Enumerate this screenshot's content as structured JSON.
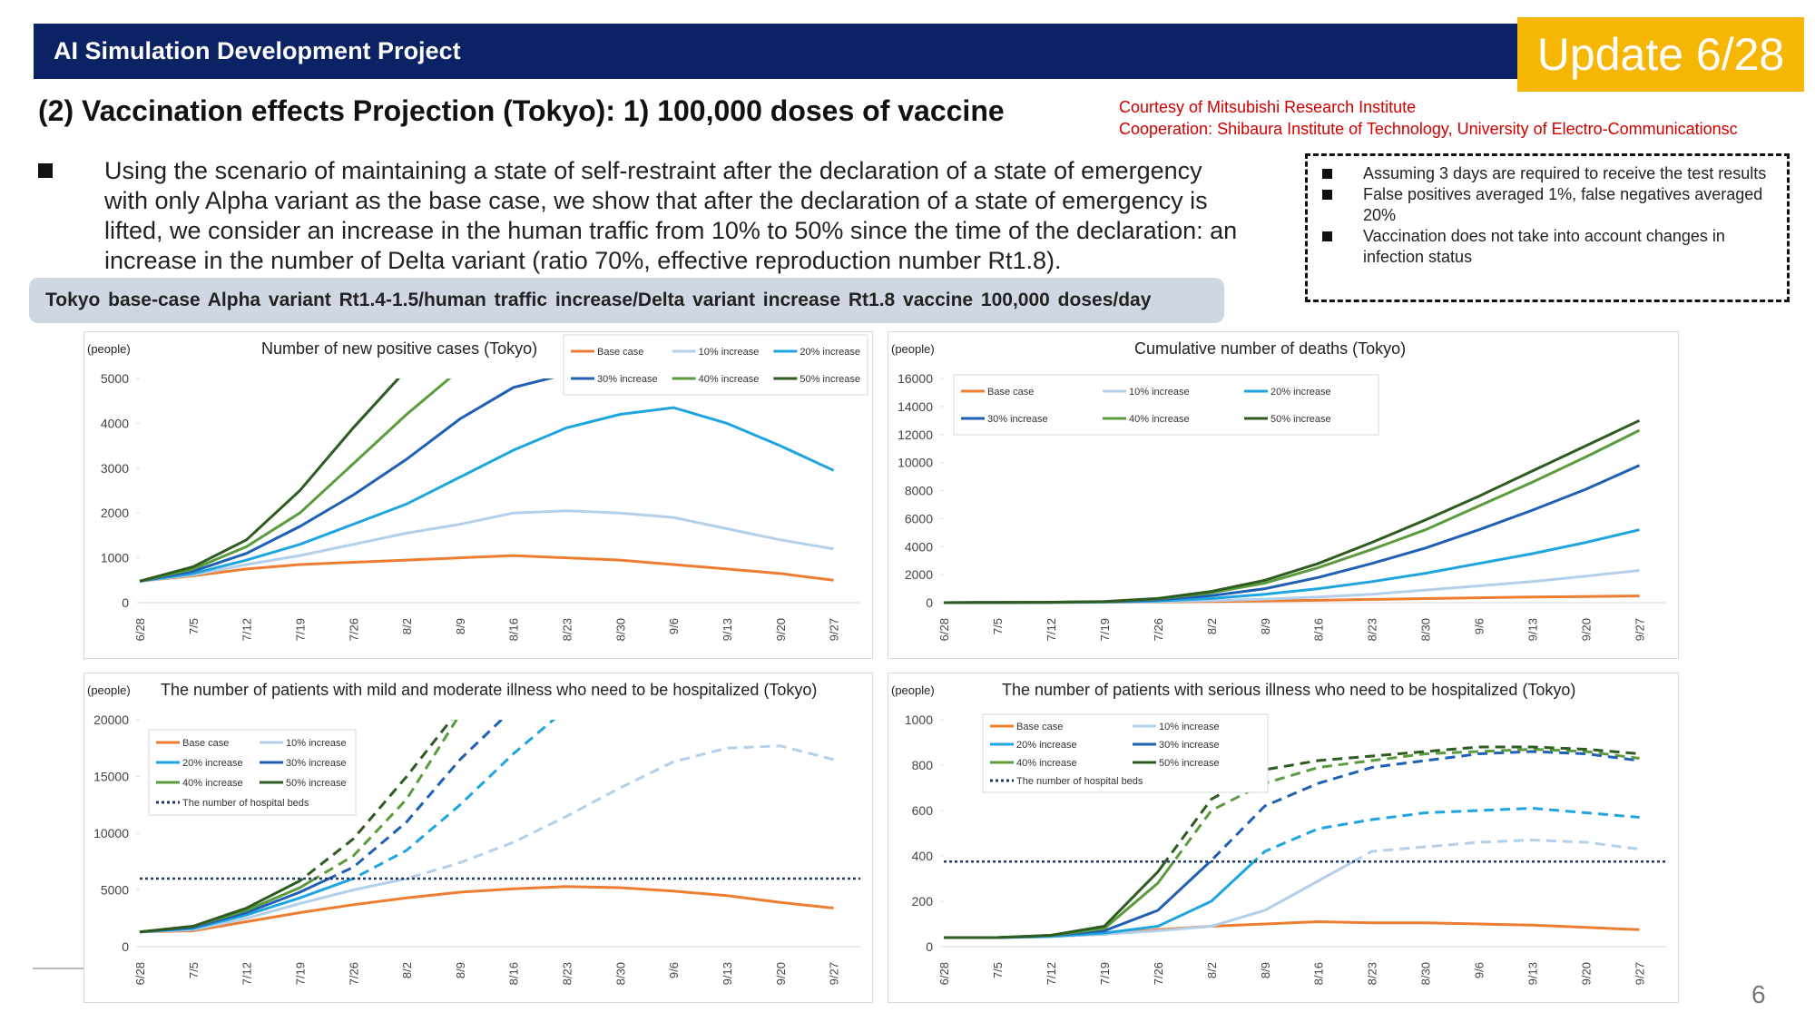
{
  "header": {
    "title": "AI Simulation Development Project",
    "badge": "Update 6/28"
  },
  "subtitle": "(2) Vaccination effects Projection (Tokyo): 1) 100,000 doses of vaccine",
  "credits": [
    "Courtesy of Mitsubishi Research Institute",
    "Cooperation: Shibaura Institute of Technology, University of Electro-Communicationsc"
  ],
  "description": "Using the scenario of maintaining a state of self-restraint after the declaration of a state of emergency with only Alpha variant as the base case, we show that after the declaration of a state of emergency is lifted, we consider an increase in the human traffic from 10% to 50% since the time of the declaration: an increase in the number of Delta variant (ratio 70%, effective reproduction number Rt1.8).",
  "assumptions": [
    "Assuming 3 days are required to receive the test results",
    "False positives averaged 1%, false negatives averaged 20%",
    "Vaccination does not take into account changes in infection status"
  ],
  "scenario": "Tokyo base-case Alpha variant Rt1.4-1.5/human traffic increase/Delta variant increase Rt1.8 vaccine 100,000 doses/day",
  "page_number": "6",
  "chart_data": [
    {
      "type": "line",
      "title": "Number of new positive cases (Tokyo)",
      "y_label": "(people)",
      "categories": [
        "6/28",
        "7/5",
        "7/12",
        "7/19",
        "7/26",
        "8/2",
        "8/9",
        "8/16",
        "8/23",
        "8/30",
        "9/6",
        "9/13",
        "9/20",
        "9/27"
      ],
      "ylim": [
        0,
        5000
      ],
      "yticks": [
        0,
        1000,
        2000,
        3000,
        4000,
        5000
      ],
      "series": [
        {
          "name": "Base case",
          "color": "#ed7d31",
          "values": [
            480,
            600,
            750,
            850,
            900,
            950,
            1000,
            1050,
            1000,
            950,
            850,
            750,
            650,
            500
          ]
        },
        {
          "name": "10% increase",
          "color": "#b4cfea",
          "values": [
            480,
            620,
            850,
            1050,
            1300,
            1550,
            1750,
            2000,
            2050,
            2000,
            1900,
            1650,
            1400,
            1200
          ]
        },
        {
          "name": "20% increase",
          "color": "#1ea5e0",
          "values": [
            480,
            650,
            950,
            1300,
            1750,
            2200,
            2800,
            3400,
            3900,
            4200,
            4350,
            4000,
            3500,
            2950
          ]
        },
        {
          "name": "30% increase",
          "color": "#1f5fb4",
          "values": [
            480,
            700,
            1100,
            1700,
            2400,
            3200,
            4100,
            4800,
            5100,
            null,
            null,
            null,
            null,
            null
          ]
        },
        {
          "name": "40% increase",
          "color": "#5b9b3d",
          "values": [
            480,
            750,
            1250,
            2000,
            3100,
            4200,
            5200,
            null,
            null,
            null,
            null,
            null,
            null,
            null
          ]
        },
        {
          "name": "50% increase",
          "color": "#2e5b20",
          "values": [
            480,
            800,
            1400,
            2500,
            3900,
            5200,
            null,
            null,
            null,
            null,
            null,
            null,
            null,
            null
          ]
        }
      ]
    },
    {
      "type": "line",
      "title": "Cumulative number of deaths (Tokyo)",
      "y_label": "(people)",
      "categories": [
        "6/28",
        "7/5",
        "7/12",
        "7/19",
        "7/26",
        "8/2",
        "8/9",
        "8/16",
        "8/23",
        "8/30",
        "9/6",
        "9/13",
        "9/20",
        "9/27"
      ],
      "ylim": [
        0,
        16000
      ],
      "yticks": [
        0,
        2000,
        4000,
        6000,
        8000,
        10000,
        12000,
        14000,
        16000
      ],
      "series": [
        {
          "name": "Base case",
          "color": "#ed7d31",
          "values": [
            0,
            10,
            20,
            30,
            50,
            80,
            120,
            170,
            230,
            290,
            350,
            400,
            440,
            480
          ]
        },
        {
          "name": "10% increase",
          "color": "#b4cfea",
          "values": [
            0,
            10,
            20,
            40,
            80,
            150,
            250,
            400,
            600,
            900,
            1200,
            1500,
            1900,
            2300
          ]
        },
        {
          "name": "20% increase",
          "color": "#1ea5e0",
          "values": [
            0,
            10,
            20,
            50,
            120,
            300,
            600,
            1000,
            1500,
            2100,
            2800,
            3500,
            4300,
            5200
          ]
        },
        {
          "name": "30% increase",
          "color": "#1f5fb4",
          "values": [
            0,
            10,
            25,
            60,
            200,
            500,
            1000,
            1800,
            2800,
            3900,
            5200,
            6600,
            8100,
            9800
          ]
        },
        {
          "name": "40% increase",
          "color": "#5b9b3d",
          "values": [
            0,
            10,
            30,
            70,
            280,
            700,
            1400,
            2500,
            3800,
            5200,
            6900,
            8600,
            10400,
            12300
          ]
        },
        {
          "name": "50% increase",
          "color": "#2e5b20",
          "values": [
            0,
            10,
            30,
            80,
            300,
            800,
            1600,
            2800,
            4300,
            5900,
            7600,
            9400,
            11200,
            13000
          ]
        }
      ]
    },
    {
      "type": "line",
      "title": "The number of patients with mild and moderate illness who need to be hospitalized (Tokyo)",
      "y_label": "(people)",
      "categories": [
        "6/28",
        "7/5",
        "7/12",
        "7/19",
        "7/26",
        "8/2",
        "8/9",
        "8/16",
        "8/23",
        "8/30",
        "9/6",
        "9/13",
        "9/20",
        "9/27"
      ],
      "ylim": [
        0,
        20000
      ],
      "yticks": [
        0,
        5000,
        10000,
        15000,
        20000
      ],
      "dashed_above_reference": true,
      "reference_line": {
        "name": "The number of hospital beds",
        "value": 6000,
        "color": "#203864"
      },
      "series": [
        {
          "name": "Base case",
          "color": "#ed7d31",
          "values": [
            1300,
            1400,
            2200,
            3000,
            3700,
            4300,
            4800,
            5100,
            5300,
            5200,
            4900,
            4500,
            3900,
            3400
          ]
        },
        {
          "name": "10% increase",
          "color": "#b4cfea",
          "values": [
            1300,
            1500,
            2500,
            3800,
            5000,
            6000,
            7400,
            9200,
            11500,
            14000,
            16300,
            17500,
            17700,
            16500
          ]
        },
        {
          "name": "20% increase",
          "color": "#1ea5e0",
          "values": [
            1300,
            1600,
            2800,
            4300,
            6000,
            8500,
            12500,
            17000,
            21000,
            null,
            null,
            null,
            null,
            null
          ]
        },
        {
          "name": "30% increase",
          "color": "#1f5fb4",
          "values": [
            1300,
            1700,
            3000,
            4800,
            7000,
            11000,
            16500,
            21000,
            null,
            null,
            null,
            null,
            null,
            null
          ]
        },
        {
          "name": "40% increase",
          "color": "#5b9b3d",
          "values": [
            1300,
            1800,
            3200,
            5200,
            8000,
            13000,
            20500,
            null,
            null,
            null,
            null,
            null,
            null,
            null
          ]
        },
        {
          "name": "50% increase",
          "color": "#2e5b20",
          "values": [
            1300,
            1800,
            3400,
            5800,
            9500,
            15000,
            21000,
            null,
            null,
            null,
            null,
            null,
            null,
            null
          ]
        }
      ]
    },
    {
      "type": "line",
      "title": "The number of patients with serious illness who need to be hospitalized (Tokyo)",
      "y_label": "(people)",
      "categories": [
        "6/28",
        "7/5",
        "7/12",
        "7/19",
        "7/26",
        "8/2",
        "8/9",
        "8/16",
        "8/23",
        "8/30",
        "9/6",
        "9/13",
        "9/20",
        "9/27"
      ],
      "ylim": [
        0,
        1000
      ],
      "yticks": [
        0,
        200,
        400,
        600,
        800,
        1000
      ],
      "dashed_above_reference": true,
      "reference_line": {
        "name": "The number of hospital beds",
        "value": 375,
        "color": "#203864"
      },
      "series": [
        {
          "name": "Base case",
          "color": "#ed7d31",
          "values": [
            40,
            40,
            45,
            55,
            75,
            90,
            100,
            110,
            105,
            105,
            100,
            95,
            85,
            75
          ]
        },
        {
          "name": "10% increase",
          "color": "#b4cfea",
          "values": [
            40,
            40,
            45,
            55,
            70,
            90,
            160,
            290,
            420,
            440,
            460,
            470,
            460,
            430
          ]
        },
        {
          "name": "20% increase",
          "color": "#1ea5e0",
          "values": [
            40,
            40,
            45,
            60,
            90,
            200,
            420,
            520,
            560,
            590,
            600,
            610,
            590,
            570
          ]
        },
        {
          "name": "30% increase",
          "color": "#1f5fb4",
          "values": [
            40,
            40,
            50,
            70,
            160,
            380,
            620,
            720,
            790,
            820,
            850,
            860,
            850,
            820
          ]
        },
        {
          "name": "40% increase",
          "color": "#5b9b3d",
          "values": [
            40,
            40,
            50,
            80,
            280,
            600,
            720,
            790,
            820,
            850,
            860,
            870,
            860,
            830
          ]
        },
        {
          "name": "50% increase",
          "color": "#2e5b20",
          "values": [
            40,
            40,
            50,
            90,
            330,
            650,
            780,
            820,
            840,
            860,
            880,
            880,
            870,
            850
          ]
        }
      ]
    }
  ]
}
